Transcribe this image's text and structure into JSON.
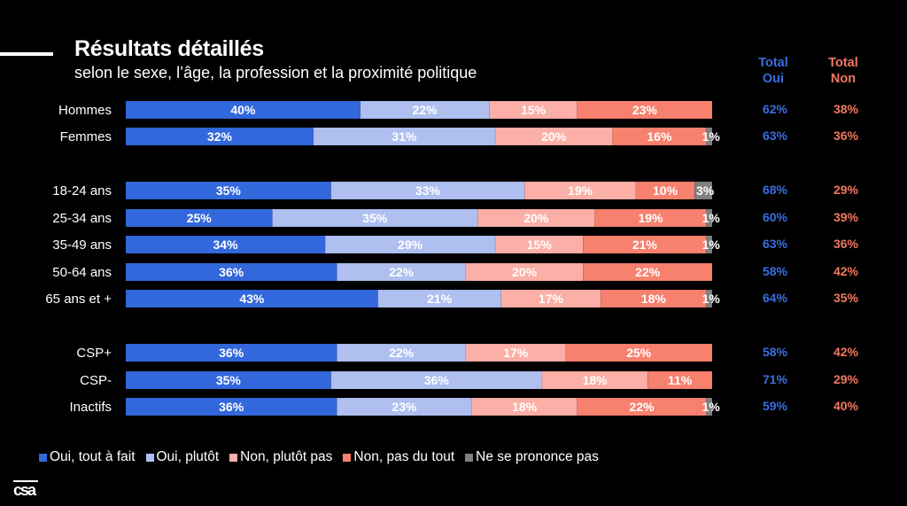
{
  "header": {
    "title": "Résultats détaillés",
    "subtitle": "selon le sexe, l’âge, la profession et la proximité politique",
    "total_oui_label": "Total\nOui",
    "total_non_label": "Total\nNon"
  },
  "colors": {
    "oui_tout_a_fait": "#3368dc",
    "oui_plutot": "#aebff0",
    "non_plutot_pas": "#fbafa6",
    "non_pas_du_tout": "#f7806e",
    "nsp": "#808080",
    "total_oui": "#3a6ee0",
    "total_non": "#f27860"
  },
  "chart_data": {
    "type": "bar",
    "orientation": "horizontal",
    "stacked": true,
    "title": "Résultats détaillés",
    "subtitle": "selon le sexe, l’âge, la profession et la proximité politique",
    "xlim": [
      0,
      100
    ],
    "groups": [
      [
        "Hommes",
        "Femmes"
      ],
      [
        "18-24 ans",
        "25-34 ans",
        "35-49 ans",
        "50-64 ans",
        "65 ans et +"
      ],
      [
        "CSP+",
        "CSP-",
        "Inactifs"
      ]
    ],
    "categories": [
      "Hommes",
      "Femmes",
      "18-24 ans",
      "25-34 ans",
      "35-49 ans",
      "50-64 ans",
      "65 ans et +",
      "CSP+",
      "CSP-",
      "Inactifs"
    ],
    "series": [
      {
        "name": "Oui, tout à fait",
        "values": [
          40,
          32,
          35,
          25,
          34,
          36,
          43,
          36,
          35,
          36
        ]
      },
      {
        "name": "Oui, plutôt",
        "values": [
          22,
          31,
          33,
          35,
          29,
          22,
          21,
          22,
          36,
          23
        ]
      },
      {
        "name": "Non, plutôt pas",
        "values": [
          15,
          20,
          19,
          20,
          15,
          20,
          17,
          17,
          18,
          18
        ]
      },
      {
        "name": "Non, pas du tout",
        "values": [
          23,
          16,
          10,
          19,
          21,
          22,
          18,
          25,
          11,
          22
        ]
      },
      {
        "name": "Ne se prononce pas",
        "values": [
          0,
          1,
          3,
          1,
          1,
          0,
          1,
          0,
          0,
          1
        ]
      }
    ],
    "totals": {
      "oui": [
        62,
        63,
        68,
        60,
        63,
        58,
        64,
        58,
        71,
        59
      ],
      "non": [
        38,
        36,
        29,
        39,
        36,
        42,
        35,
        42,
        29,
        40
      ]
    },
    "legend": [
      "Oui, tout à fait",
      "Oui, plutôt",
      "Non, plutôt pas",
      "Non, pas du tout",
      "Ne se prononce pas"
    ],
    "legend_position": "bottom",
    "grid": false
  },
  "footer": {
    "logo": "csa"
  }
}
